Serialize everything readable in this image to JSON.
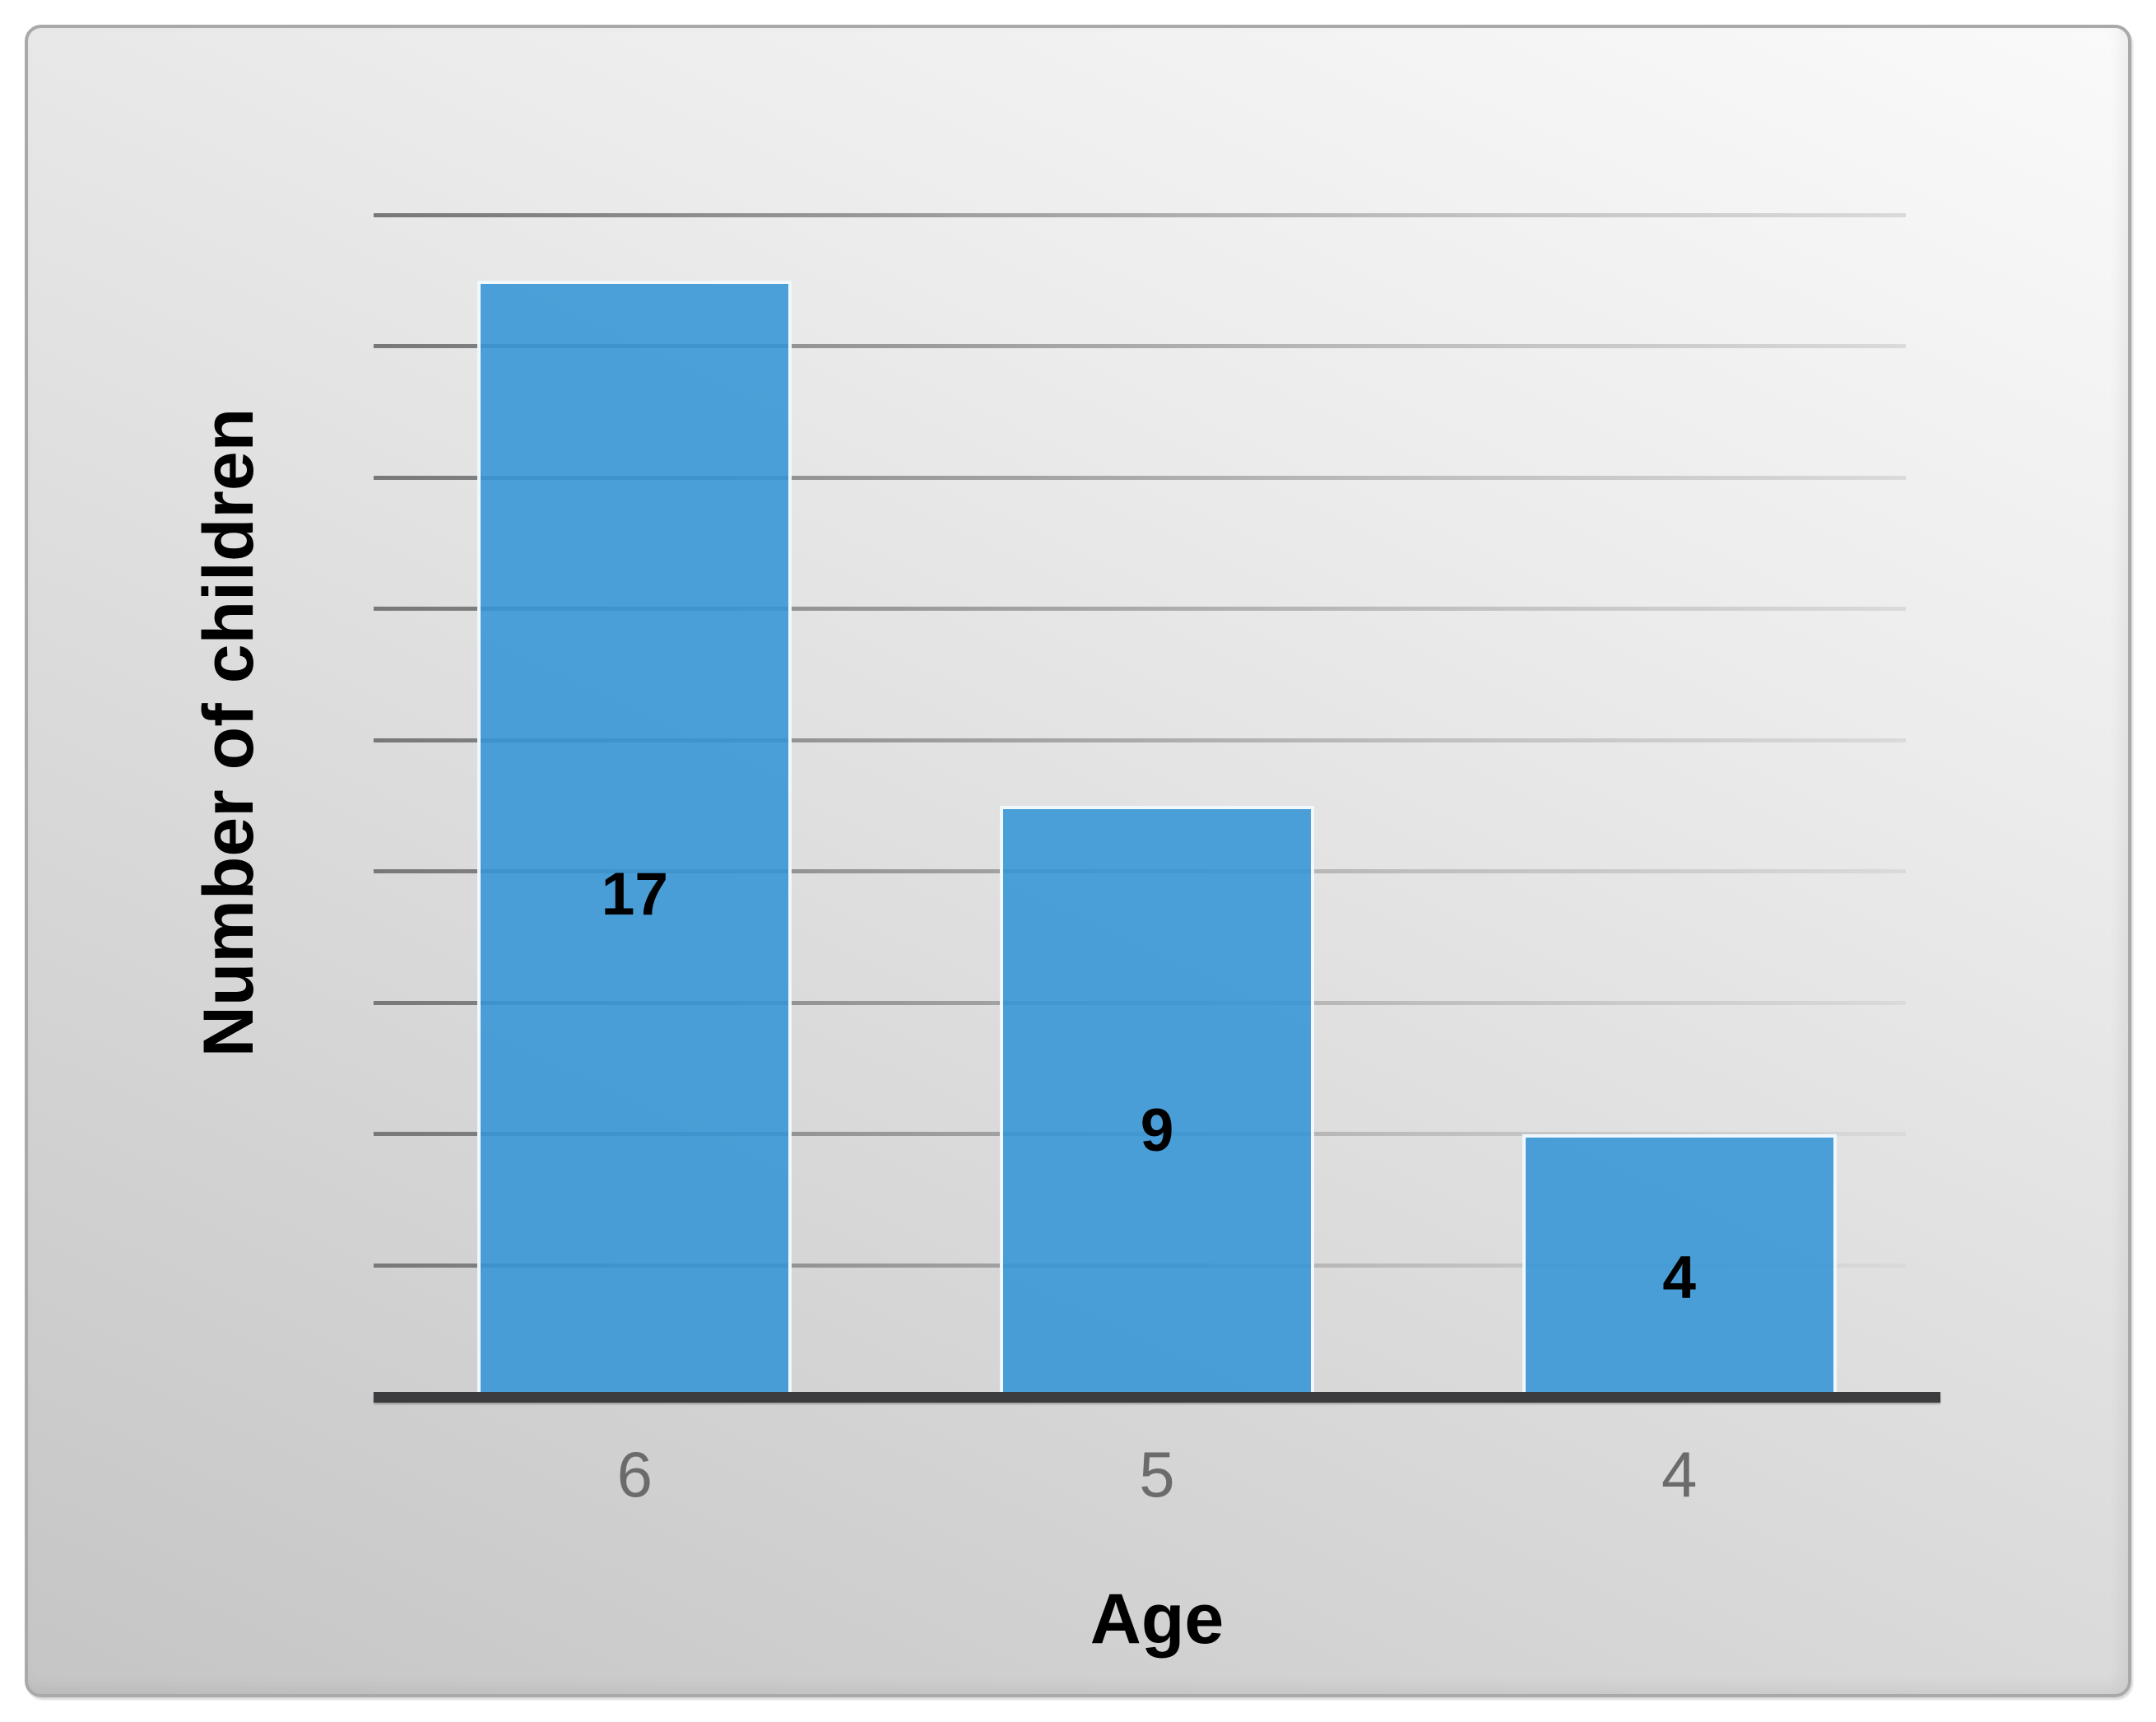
{
  "chart_data": {
    "type": "bar",
    "title": "",
    "categories": [
      "6",
      "5",
      "4"
    ],
    "values": [
      17,
      9,
      4
    ],
    "data_labels": [
      "17",
      "9",
      "4"
    ],
    "xlabel": "Age",
    "ylabel": "Number of children",
    "ylim": [
      0,
      18
    ],
    "gridline_values": [
      2,
      4,
      6,
      8,
      10,
      12,
      14,
      16,
      18
    ],
    "y_tick_labels_shown": false,
    "legend": "none",
    "grid": "horizontal",
    "colors": {
      "bar_fill": "#4aa4db",
      "bar_fill_rgba": "rgba(53,149,214,0.88)",
      "bar_edge": "#ffffff",
      "gridline": "#9b9b9b",
      "axis_line": "#3c3c3e",
      "value_label": "#000000",
      "tick_label": "#6b6b6b",
      "axis_title": "#000000",
      "card_border": "#a9a9a9",
      "background_light": "#fafafa",
      "background_dark": "#c5c5c5",
      "page_background": "#ffffff"
    }
  }
}
